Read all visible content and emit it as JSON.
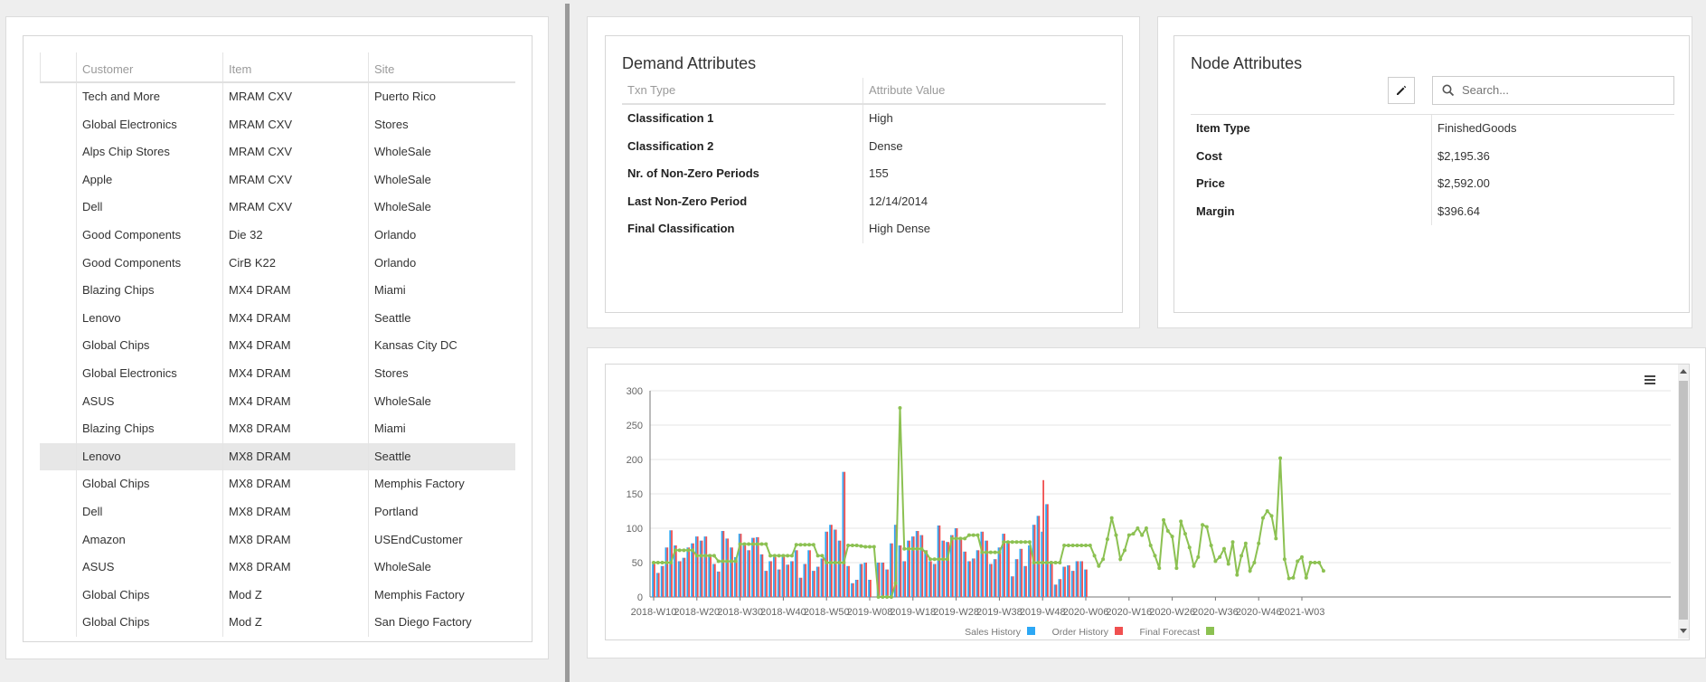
{
  "customer_grid": {
    "columns": [
      "Customer",
      "Item",
      "Site"
    ],
    "selected_index": 13,
    "rows": [
      [
        "Tech and More",
        "MRAM CXV",
        "Puerto Rico"
      ],
      [
        "Global Electronics",
        "MRAM CXV",
        "Stores"
      ],
      [
        "Alps Chip Stores",
        "MRAM CXV",
        "WholeSale"
      ],
      [
        "Apple",
        "MRAM CXV",
        "WholeSale"
      ],
      [
        "Dell",
        "MRAM CXV",
        "WholeSale"
      ],
      [
        "Good Components",
        "Die 32",
        "Orlando"
      ],
      [
        "Good Components",
        "CirB K22",
        "Orlando"
      ],
      [
        "Blazing Chips",
        "MX4 DRAM",
        "Miami"
      ],
      [
        "Lenovo",
        "MX4 DRAM",
        "Seattle"
      ],
      [
        "Global Chips",
        "MX4 DRAM",
        "Kansas City DC"
      ],
      [
        "Global Electronics",
        "MX4 DRAM",
        "Stores"
      ],
      [
        "ASUS",
        "MX4 DRAM",
        "WholeSale"
      ],
      [
        "Blazing Chips",
        "MX8 DRAM",
        "Miami"
      ],
      [
        "Lenovo",
        "MX8 DRAM",
        "Seattle"
      ],
      [
        "Global Chips",
        "MX8 DRAM",
        "Memphis Factory"
      ],
      [
        "Dell",
        "MX8 DRAM",
        "Portland"
      ],
      [
        "Amazon",
        "MX8 DRAM",
        "USEndCustomer"
      ],
      [
        "ASUS",
        "MX8 DRAM",
        "WholeSale"
      ],
      [
        "Global Chips",
        "Mod Z",
        "Memphis Factory"
      ],
      [
        "Global Chips",
        "Mod Z",
        "San Diego Factory"
      ]
    ]
  },
  "demand_attributes": {
    "title": "Demand Attributes",
    "columns": [
      "Txn Type",
      "Attribute Value"
    ],
    "rows": [
      [
        "Classification 1",
        "High"
      ],
      [
        "Classification 2",
        "Dense"
      ],
      [
        "Nr. of Non-Zero Periods",
        "155"
      ],
      [
        "Last Non-Zero Period",
        "12/14/2014"
      ],
      [
        "Final Classification",
        "High Dense"
      ]
    ]
  },
  "node_attributes": {
    "title": "Node Attributes",
    "edit_icon": "pencil-icon",
    "search_placeholder": "Search...",
    "rows": [
      [
        "Item Type",
        "FinishedGoods"
      ],
      [
        "Cost",
        "$2,195.36"
      ],
      [
        "Price",
        "$2,592.00"
      ],
      [
        "Margin",
        "$396.64"
      ]
    ]
  },
  "chart_data": {
    "type": "bar",
    "menu_icon": "hamburger-icon",
    "x_tick_labels": [
      "2018-W10",
      "2018-W20",
      "2018-W30",
      "2018-W40",
      "2018-W50",
      "2019-W08",
      "2019-W18",
      "2019-W28",
      "2019-W38",
      "2019-W48",
      "2020-W06",
      "2020-W16",
      "2020-W26",
      "2020-W36",
      "2020-W46",
      "2021-W03"
    ],
    "x_start": "2018-W08",
    "y_ticks": [
      0,
      50,
      100,
      150,
      200,
      250,
      300
    ],
    "ylim": [
      0,
      300
    ],
    "grid": true,
    "legend_position": "bottom",
    "colors": {
      "sales": "#2da8f5",
      "order": "#f05050",
      "forecast": "#8cc152"
    },
    "series": [
      {
        "name": "Sales History",
        "type": "bar",
        "values": [
          48,
          35,
          45,
          72,
          97,
          75,
          52,
          57,
          72,
          78,
          88,
          82,
          88,
          62,
          48,
          37,
          96,
          85,
          72,
          58,
          92,
          75,
          68,
          86,
          87,
          62,
          38,
          52,
          58,
          40,
          60,
          47,
          52,
          68,
          28,
          48,
          68,
          38,
          44,
          56,
          95,
          105,
          98,
          82,
          182,
          45,
          20,
          25,
          48,
          50,
          25,
          0,
          50,
          50,
          40,
          78,
          105,
          75,
          52,
          82,
          88,
          96,
          90,
          68,
          52,
          48,
          104,
          82,
          80,
          90,
          100,
          85,
          66,
          52,
          56,
          68,
          95,
          82,
          48,
          55,
          72,
          92,
          80,
          30,
          55,
          70,
          45,
          75,
          105,
          118,
          95,
          135,
          52,
          18,
          26,
          44,
          46,
          38,
          52,
          52,
          40
        ]
      },
      {
        "name": "Order History",
        "type": "bar",
        "values": [
          48,
          35,
          45,
          72,
          97,
          75,
          52,
          57,
          72,
          78,
          88,
          82,
          88,
          62,
          48,
          37,
          96,
          85,
          72,
          58,
          92,
          75,
          68,
          86,
          87,
          62,
          38,
          52,
          58,
          40,
          60,
          47,
          52,
          68,
          28,
          48,
          68,
          38,
          44,
          56,
          95,
          105,
          98,
          82,
          182,
          45,
          20,
          25,
          48,
          50,
          25,
          0,
          50,
          50,
          40,
          78,
          105,
          75,
          52,
          82,
          88,
          96,
          90,
          68,
          52,
          48,
          104,
          82,
          80,
          90,
          100,
          85,
          66,
          52,
          56,
          68,
          95,
          82,
          48,
          55,
          72,
          92,
          80,
          30,
          55,
          70,
          45,
          75,
          105,
          118,
          170,
          135,
          52,
          18,
          26,
          44,
          46,
          38,
          52,
          52,
          40
        ]
      },
      {
        "name": "Final Forecast",
        "type": "line",
        "values": [
          50,
          50,
          50,
          50,
          50,
          68,
          68,
          68,
          68,
          68,
          60,
          60,
          60,
          60,
          60,
          52,
          52,
          52,
          52,
          52,
          77,
          77,
          77,
          77,
          77,
          77,
          77,
          60,
          60,
          60,
          60,
          60,
          60,
          76,
          76,
          76,
          76,
          76,
          60,
          60,
          50,
          50,
          50,
          50,
          50,
          75,
          75,
          75,
          74,
          73,
          73,
          73,
          0,
          0,
          0,
          0,
          20,
          275,
          70,
          70,
          70,
          70,
          70,
          65,
          55,
          55,
          55,
          55,
          55,
          85,
          85,
          85,
          85,
          90,
          90,
          90,
          65,
          65,
          65,
          65,
          65,
          80,
          80,
          80,
          80,
          80,
          80,
          80,
          50,
          50,
          50,
          50,
          50,
          50,
          50,
          75,
          75,
          75,
          75,
          75,
          75,
          75,
          60,
          45,
          55,
          84,
          115,
          90,
          55,
          68,
          90,
          92,
          100,
          90,
          100,
          75,
          60,
          42,
          112,
          96,
          88,
          42,
          110,
          92,
          72,
          45,
          58,
          105,
          102,
          75,
          52,
          58,
          70,
          48,
          80,
          32,
          60,
          78,
          38,
          50,
          78,
          115,
          125,
          118,
          85,
          202,
          55,
          27,
          28,
          52,
          58,
          28,
          50,
          50,
          50,
          38
        ]
      }
    ]
  }
}
